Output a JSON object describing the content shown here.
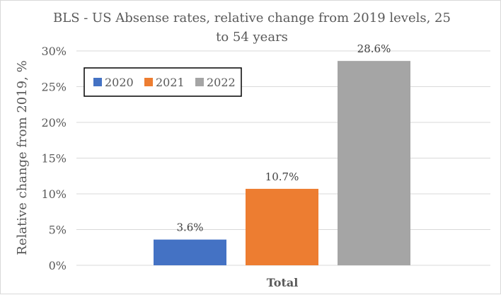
{
  "chart_data": {
    "type": "bar",
    "title_line1": "BLS - US Absense rates, relative change from 2019 levels, 25",
    "title_line2": "to 54 years",
    "xlabel": "Total",
    "ylabel": "Relative change from 2019, %",
    "categories": [
      "Total"
    ],
    "series": [
      {
        "name": "2020",
        "values": [
          3.6
        ],
        "label": "3.6%",
        "color": "#4472c4"
      },
      {
        "name": "2021",
        "values": [
          10.7
        ],
        "label": "10.7%",
        "color": "#ed7d31"
      },
      {
        "name": "2022",
        "values": [
          28.6
        ],
        "label": "28.6%",
        "color": "#a5a5a5"
      }
    ],
    "ylim": [
      0,
      30
    ],
    "yticks": [
      0,
      5,
      10,
      15,
      20,
      25,
      30
    ],
    "ytick_labels": [
      "0%",
      "5%",
      "10%",
      "15%",
      "20%",
      "25%",
      "30%"
    ],
    "grid": true,
    "legend_position": "top-left"
  }
}
